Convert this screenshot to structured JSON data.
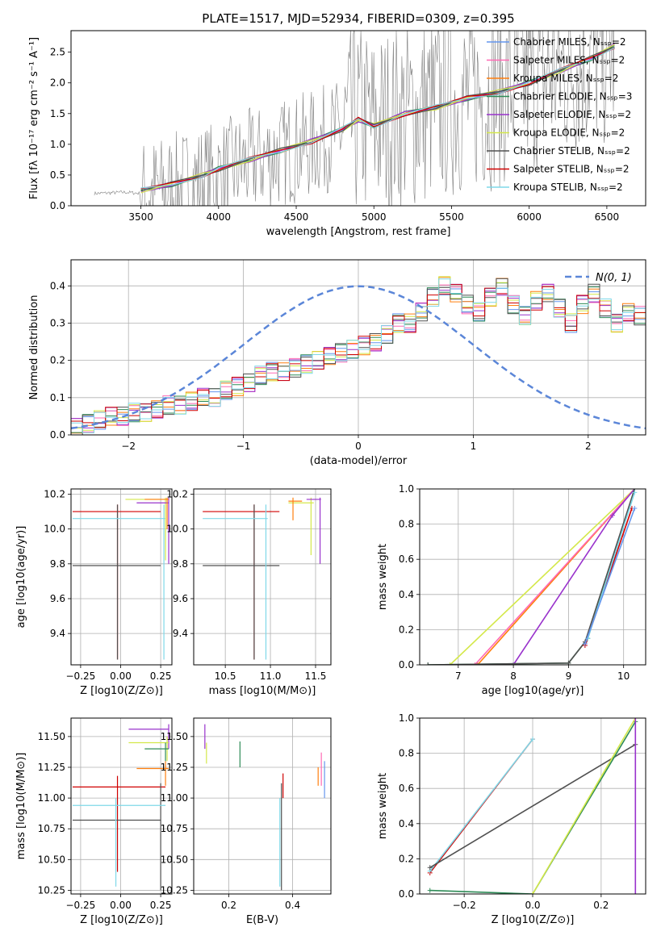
{
  "figure_title": "PLATE=1517, MJD=52934, FIBERID=0309, z=0.395",
  "series_colors": [
    "#6495ed",
    "#ff69b4",
    "#ff7f0e",
    "#2e8b57",
    "#9932cc",
    "#d4e84a",
    "#505050",
    "#d00000",
    "#7fd8e8"
  ],
  "chart_data": [
    {
      "id": "spectrum",
      "type": "line",
      "title": "PLATE=1517, MJD=52934, FIBERID=0309, z=0.395",
      "xlabel": "wavelength [Angstrom, rest frame]",
      "ylabel": "Flux [fλ 10⁻¹⁷ erg cm⁻² s⁻¹ A⁻¹]",
      "xlim": [
        3050,
        6750
      ],
      "ylim": [
        0,
        2.85
      ],
      "xticks": [
        3500,
        4000,
        4500,
        5000,
        5500,
        6000,
        6500
      ],
      "yticks": [
        0.0,
        0.5,
        1.0,
        1.5,
        2.0,
        2.5
      ],
      "grid": false,
      "legend_position": "top-right",
      "data_x": [
        3200,
        3400,
        3500,
        3700,
        3900,
        4000,
        4200,
        4400,
        4600,
        4800,
        4900,
        5000,
        5200,
        5400,
        5600,
        5800,
        6000,
        6200,
        6400,
        6550
      ],
      "data_y": [
        0.2,
        0.22,
        0.2,
        0.3,
        0.45,
        0.5,
        0.7,
        0.85,
        1.0,
        1.2,
        1.4,
        1.3,
        1.45,
        1.6,
        1.75,
        1.85,
        2.05,
        2.2,
        2.45,
        2.55
      ],
      "model_x": [
        3500,
        3700,
        3900,
        4000,
        4200,
        4400,
        4600,
        4800,
        4900,
        5000,
        5200,
        5400,
        5600,
        5800,
        6000,
        6200,
        6400,
        6550
      ],
      "model_y": [
        0.25,
        0.35,
        0.5,
        0.6,
        0.75,
        0.9,
        1.05,
        1.25,
        1.4,
        1.3,
        1.5,
        1.6,
        1.75,
        1.85,
        2.0,
        2.2,
        2.4,
        2.6
      ],
      "series": [
        {
          "name": "Chabrier MILES, N_SSP=2"
        },
        {
          "name": "Salpeter MILES, N_SSP=2"
        },
        {
          "name": "Kroupa MILES, N_SSP=2"
        },
        {
          "name": "Chabrier ELODIE, N_SSP=3"
        },
        {
          "name": "Salpeter ELODIE, N_SSP=2"
        },
        {
          "name": "Kroupa ELODIE, N_SSP=2"
        },
        {
          "name": "Chabrier STELIB, N_SSP=2"
        },
        {
          "name": "Salpeter STELIB, N_SSP=2"
        },
        {
          "name": "Kroupa STELIB, N_SSP=2"
        }
      ]
    },
    {
      "id": "residuals",
      "type": "line",
      "xlabel": "(data-model)/error",
      "ylabel": "Normed distribution",
      "xlim": [
        -2.5,
        2.5
      ],
      "ylim": [
        0,
        0.47
      ],
      "xticks": [
        -2,
        -1,
        0,
        1,
        2
      ],
      "yticks": [
        0.0,
        0.1,
        0.2,
        0.3,
        0.4
      ],
      "grid": true,
      "legend_position": "top-right",
      "gaussian_label": "N(0, 1)",
      "bin_width": 0.1,
      "histogram": [
        0.02,
        0.03,
        0.04,
        0.05,
        0.05,
        0.06,
        0.06,
        0.07,
        0.08,
        0.08,
        0.09,
        0.1,
        0.1,
        0.12,
        0.13,
        0.14,
        0.16,
        0.17,
        0.17,
        0.18,
        0.19,
        0.2,
        0.21,
        0.22,
        0.23,
        0.24,
        0.25,
        0.27,
        0.3,
        0.3,
        0.33,
        0.37,
        0.4,
        0.38,
        0.35,
        0.33,
        0.37,
        0.4,
        0.35,
        0.32,
        0.36,
        0.38,
        0.34,
        0.3,
        0.35,
        0.38,
        0.34,
        0.3,
        0.33,
        0.32
      ]
    },
    {
      "id": "age-vs-Z",
      "type": "scatter",
      "xlabel": "Z [log10(Z/Z⊙)]",
      "ylabel": "age  [log10(age/yr)]",
      "xlim": [
        -0.31,
        0.32
      ],
      "ylim": [
        9.22,
        10.23
      ],
      "xticks": [
        -0.25,
        0.0,
        0.25
      ],
      "xticklabels": [
        "−0.25",
        "0.00",
        "0.25"
      ],
      "yticks": [
        9.4,
        9.6,
        9.8,
        10.0,
        10.2
      ],
      "grid": true,
      "points": [
        {
          "x": -0.02,
          "y": 10.1,
          "x0": -0.3,
          "x1": 0.25,
          "y0": 9.25,
          "y1": 10.14,
          "c": 7
        },
        {
          "x": -0.02,
          "y": 9.79,
          "x0": -0.3,
          "x1": 0.25,
          "y0": 9.25,
          "y1": 10.14,
          "c": 6
        },
        {
          "x": 0.27,
          "y": 10.06,
          "x0": -0.3,
          "x1": 0.28,
          "y0": 9.25,
          "y1": 10.14,
          "c": 8
        },
        {
          "x": 0.28,
          "y": 10.17,
          "x0": 0.03,
          "x1": 0.3,
          "y0": 9.82,
          "y1": 10.18,
          "c": 5
        },
        {
          "x": 0.3,
          "y": 10.15,
          "x0": 0.1,
          "x1": 0.3,
          "y0": 9.8,
          "y1": 10.18,
          "c": 4
        },
        {
          "x": 0.29,
          "y": 10.17,
          "x0": 0.15,
          "x1": 0.3,
          "y0": 10.0,
          "y1": 10.18,
          "c": 2
        }
      ]
    },
    {
      "id": "age-vs-mass",
      "type": "scatter",
      "xlabel": "mass [log10(M/M⊙)]",
      "ylabel": "",
      "xlim": [
        10.15,
        11.67
      ],
      "ylim": [
        9.22,
        10.23
      ],
      "xticks": [
        10.5,
        11.0,
        11.5
      ],
      "xticklabels": [
        "10.5",
        "11.0",
        "11.5"
      ],
      "yticks": [
        9.4,
        9.6,
        9.8,
        10.0,
        10.2
      ],
      "grid": true,
      "points": [
        {
          "x": 10.82,
          "y": 10.1,
          "x0": 10.25,
          "x1": 11.1,
          "y0": 9.25,
          "y1": 10.14,
          "c": 7
        },
        {
          "x": 10.82,
          "y": 9.79,
          "x0": 10.25,
          "x1": 11.1,
          "y0": 9.25,
          "y1": 10.14,
          "c": 6
        },
        {
          "x": 10.95,
          "y": 10.06,
          "x0": 10.25,
          "x1": 10.97,
          "y0": 9.25,
          "y1": 10.14,
          "c": 8
        },
        {
          "x": 11.45,
          "y": 10.15,
          "x0": 11.2,
          "x1": 11.48,
          "y0": 9.85,
          "y1": 10.18,
          "c": 5
        },
        {
          "x": 11.55,
          "y": 10.17,
          "x0": 11.4,
          "x1": 11.56,
          "y0": 9.8,
          "y1": 10.18,
          "c": 4
        },
        {
          "x": 11.25,
          "y": 10.16,
          "x0": 11.2,
          "x1": 11.35,
          "y0": 10.05,
          "y1": 10.18,
          "c": 2
        }
      ]
    },
    {
      "id": "massweight-vs-age",
      "type": "line",
      "xlabel": "age  [log10(age/yr)]",
      "ylabel": "mass weight",
      "xlim": [
        6.3,
        10.4
      ],
      "ylim": [
        0,
        1.0
      ],
      "xticks": [
        7,
        8,
        9,
        10
      ],
      "yticks": [
        0.0,
        0.2,
        0.4,
        0.6,
        0.8,
        1.0
      ],
      "grid": true,
      "series": [
        {
          "c": 5,
          "x": [
            6.85,
            10.2
          ],
          "y": [
            0.0,
            1.0
          ]
        },
        {
          "c": 2,
          "x": [
            7.35,
            10.2
          ],
          "y": [
            0.0,
            1.0
          ]
        },
        {
          "c": 1,
          "x": [
            7.3,
            10.2
          ],
          "y": [
            0.0,
            1.0
          ]
        },
        {
          "c": 4,
          "x": [
            8.0,
            9.8,
            10.2
          ],
          "y": [
            0.0,
            0.85,
            1.0
          ]
        },
        {
          "c": 3,
          "x": [
            6.45,
            9.0,
            9.35,
            10.2
          ],
          "y": [
            0.0,
            0.01,
            0.15,
            1.0
          ]
        },
        {
          "c": 6,
          "x": [
            6.45,
            9.0,
            9.3,
            10.2
          ],
          "y": [
            0.0,
            0.01,
            0.13,
            1.0
          ]
        },
        {
          "c": 7,
          "x": [
            9.3,
            10.15
          ],
          "y": [
            0.11,
            0.89
          ]
        },
        {
          "c": 8,
          "x": [
            9.35,
            10.2
          ],
          "y": [
            0.15,
            0.98
          ]
        },
        {
          "c": 0,
          "x": [
            9.3,
            10.2
          ],
          "y": [
            0.12,
            0.89
          ]
        }
      ]
    },
    {
      "id": "mass-vs-Z",
      "type": "scatter",
      "xlabel": "Z [log10(Z/Z⊙)]",
      "ylabel": "mass [log10(M/M⊙)]",
      "xlim": [
        -0.31,
        0.32
      ],
      "ylim": [
        10.22,
        11.65
      ],
      "xticks": [
        -0.25,
        0.0,
        0.25
      ],
      "xticklabels": [
        "−0.25",
        "0.00",
        "0.25"
      ],
      "yticks": [
        10.25,
        10.5,
        10.75,
        11.0,
        11.25,
        11.5
      ],
      "yticklabels": [
        "10.25",
        "10.50",
        "10.75",
        "11.00",
        "11.25",
        "11.50"
      ],
      "grid": true,
      "points": [
        {
          "x": -0.02,
          "y": 11.09,
          "x0": -0.3,
          "x1": 0.28,
          "y0": 10.4,
          "y1": 11.18,
          "c": 7
        },
        {
          "x": 0.25,
          "y": 10.82,
          "x0": -0.3,
          "x1": 0.25,
          "y0": 10.25,
          "y1": 11.12,
          "c": 6
        },
        {
          "x": -0.03,
          "y": 10.94,
          "x0": -0.3,
          "x1": 0.28,
          "y0": 10.28,
          "y1": 11.0,
          "c": 8
        },
        {
          "x": 0.3,
          "y": 11.56,
          "x0": 0.05,
          "x1": 0.3,
          "y0": 11.4,
          "y1": 11.6,
          "c": 4
        },
        {
          "x": 0.29,
          "y": 11.45,
          "x0": 0.05,
          "x1": 0.3,
          "y0": 11.3,
          "y1": 11.5,
          "c": 5
        },
        {
          "x": 0.28,
          "y": 11.24,
          "x0": 0.1,
          "x1": 0.3,
          "y0": 11.1,
          "y1": 11.3,
          "c": 2
        },
        {
          "x": 0.28,
          "y": 11.4,
          "x0": 0.15,
          "x1": 0.3,
          "y0": 11.3,
          "y1": 11.45,
          "c": 3
        }
      ]
    },
    {
      "id": "mass-vs-EBV",
      "type": "scatter",
      "xlabel": "E(B-V)",
      "ylabel": "",
      "xlim": [
        0.09,
        0.52
      ],
      "ylim": [
        10.22,
        11.65
      ],
      "xticks": [
        0.2,
        0.4
      ],
      "xticklabels": [
        "0.2",
        "0.4"
      ],
      "yticks": [
        10.25,
        10.5,
        10.75,
        11.0,
        11.25,
        11.5
      ],
      "yticklabels": [
        "10.25",
        "10.50",
        "10.75",
        "11.00",
        "11.25",
        "11.50"
      ],
      "grid": true,
      "points": [
        {
          "x": 0.37,
          "y0": 11.0,
          "y1": 11.2,
          "c": 7
        },
        {
          "x": 0.365,
          "y0": 10.25,
          "y1": 11.12,
          "c": 6
        },
        {
          "x": 0.36,
          "y0": 10.28,
          "y1": 11.0,
          "c": 8
        },
        {
          "x": 0.125,
          "y0": 11.4,
          "y1": 11.6,
          "c": 4
        },
        {
          "x": 0.13,
          "y0": 11.28,
          "y1": 11.45,
          "c": 5
        },
        {
          "x": 0.235,
          "y0": 11.25,
          "y1": 11.46,
          "c": 3
        },
        {
          "x": 0.49,
          "y0": 11.1,
          "y1": 11.37,
          "c": 1
        },
        {
          "x": 0.5,
          "y0": 11.0,
          "y1": 11.3,
          "c": 0
        },
        {
          "x": 0.48,
          "y0": 11.1,
          "y1": 11.25,
          "c": 2
        }
      ]
    },
    {
      "id": "massweight-vs-Z",
      "type": "line",
      "xlabel": "Z [log10(Z/Z⊙)]",
      "ylabel": "mass weight",
      "xlim": [
        -0.33,
        0.33
      ],
      "ylim": [
        0,
        1.0
      ],
      "xticks": [
        -0.2,
        0.0,
        0.2
      ],
      "xticklabels": [
        "−0.2",
        "0.0",
        "0.2"
      ],
      "yticks": [
        0.0,
        0.2,
        0.4,
        0.6,
        0.8,
        1.0
      ],
      "grid": true,
      "series": [
        {
          "c": 7,
          "x": [
            -0.3,
            0.0
          ],
          "y": [
            0.12,
            0.88
          ]
        },
        {
          "c": 8,
          "x": [
            -0.3,
            0.0
          ],
          "y": [
            0.13,
            0.88
          ]
        },
        {
          "c": 6,
          "x": [
            -0.3,
            0.3
          ],
          "y": [
            0.15,
            0.85
          ]
        },
        {
          "c": 3,
          "x": [
            -0.3,
            0.0,
            0.3
          ],
          "y": [
            0.02,
            0.0,
            0.98
          ]
        },
        {
          "c": 5,
          "x": [
            0.0,
            0.3
          ],
          "y": [
            0.0,
            1.0
          ]
        },
        {
          "c": 4,
          "x": [
            0.3,
            0.3
          ],
          "y": [
            0.0,
            1.0
          ]
        }
      ]
    }
  ]
}
